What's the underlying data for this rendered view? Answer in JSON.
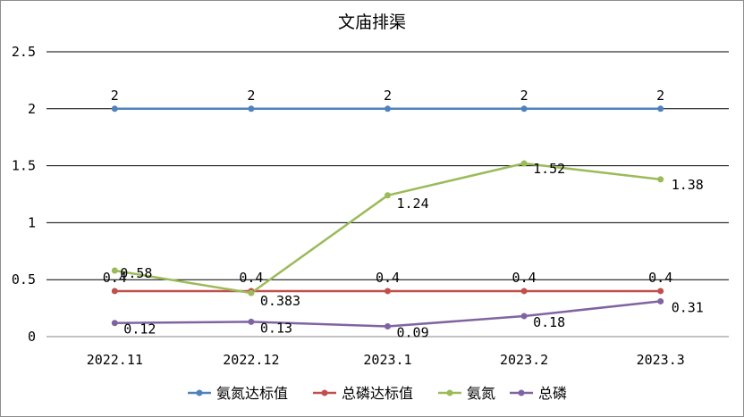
{
  "chart_data": {
    "type": "line",
    "title": "文庙排渠",
    "categories": [
      "2022.11",
      "2022.12",
      "2023.1",
      "2023.2",
      "2023.3"
    ],
    "ylim": [
      0,
      2.5
    ],
    "yticks": [
      "0",
      "0.5",
      "1",
      "1.5",
      "2",
      "2.5"
    ],
    "grid": true,
    "legend_position": "bottom",
    "series": [
      {
        "name": "氨氮达标值",
        "color": "#4f81bd",
        "values": [
          2,
          2,
          2,
          2,
          2
        ],
        "labels": [
          "2",
          "2",
          "2",
          "2",
          "2"
        ]
      },
      {
        "name": "总磷达标值",
        "color": "#c0504d",
        "values": [
          0.4,
          0.4,
          0.4,
          0.4,
          0.4
        ],
        "labels": [
          "0.4",
          "0.4",
          "0.4",
          "0.4",
          "0.4"
        ]
      },
      {
        "name": "氨氮",
        "color": "#9bbb59",
        "values": [
          0.58,
          0.383,
          1.24,
          1.52,
          1.38
        ],
        "labels": [
          "0.58",
          "0.383",
          "1.24",
          "1.52",
          "1.38"
        ]
      },
      {
        "name": "总磷",
        "color": "#8064a2",
        "values": [
          0.12,
          0.13,
          0.09,
          0.18,
          0.31
        ],
        "labels": [
          "0.12",
          "0.13",
          "0.09",
          "0.18",
          "0.31"
        ]
      }
    ]
  }
}
